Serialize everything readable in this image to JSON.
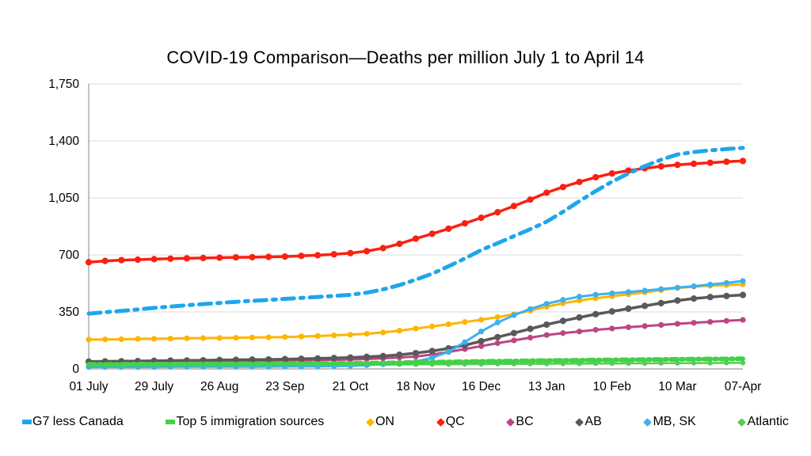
{
  "title": "COVID-19 Comparison—Deaths per million July 1 to April 14",
  "colors": {
    "background": "#ffffff",
    "gridline": "#d9d9d9",
    "axis_line": "#9a9a9a",
    "text": "#000000"
  },
  "chart_data": {
    "type": "line",
    "title": "COVID-19 Comparison—Deaths per million July 1 to April 14",
    "xlabel": "",
    "ylabel": "",
    "ylim": [
      0,
      1750
    ],
    "y_ticks": [
      0,
      350,
      700,
      1050,
      1400,
      1750
    ],
    "x_tick_labels": [
      "01 July",
      "29 July",
      "26 Aug",
      "23 Sep",
      "21 Oct",
      "18 Nov",
      "16 Dec",
      "13 Jan",
      "10 Feb",
      "10 Mar",
      "07-Apr"
    ],
    "x_unit": "weeks (41 weekly points, 01 July to 07 Apr)",
    "grid": true,
    "legend_position": "bottom",
    "series": [
      {
        "name": "G7 less Canada",
        "color": "#1ea6ec",
        "line_style": "dashed",
        "line_width": 5,
        "dash": "15 8 4 8",
        "markers": false,
        "legend_marker": "dash",
        "values": [
          340,
          348,
          356,
          365,
          375,
          383,
          391,
          398,
          405,
          412,
          418,
          424,
          430,
          436,
          442,
          448,
          455,
          468,
          488,
          515,
          548,
          585,
          630,
          678,
          730,
          772,
          815,
          858,
          904,
          965,
          1030,
          1092,
          1150,
          1200,
          1245,
          1285,
          1317,
          1332,
          1342,
          1350,
          1357
        ]
      },
      {
        "name": "Top 5 immigration sources",
        "color": "#43d147",
        "line_style": "dashed",
        "line_width": 6,
        "dash": "8 5 3 5",
        "markers": false,
        "legend_marker": "dash",
        "values": [
          28,
          28,
          28,
          29,
          29,
          29,
          30,
          30,
          30,
          31,
          31,
          31,
          32,
          32,
          33,
          33,
          34,
          35,
          36,
          38,
          40,
          41,
          43,
          44,
          46,
          47,
          48,
          50,
          51,
          52,
          53,
          54,
          55,
          56,
          57,
          58,
          59,
          60,
          61,
          61,
          62
        ]
      },
      {
        "name": "ON",
        "color": "#ffb400",
        "line_style": "solid",
        "line_width": 3,
        "dash": "",
        "markers": true,
        "legend_marker": "diamond",
        "values": [
          180,
          181,
          182,
          184,
          185,
          186,
          188,
          189,
          190,
          191,
          193,
          194,
          196,
          199,
          202,
          206,
          210,
          216,
          224,
          235,
          248,
          261,
          274,
          288,
          302,
          318,
          336,
          358,
          382,
          403,
          420,
          434,
          446,
          458,
          470,
          484,
          497,
          505,
          511,
          515,
          519
        ]
      },
      {
        "name": "QC",
        "color": "#fa2012",
        "line_style": "solid",
        "line_width": 3.5,
        "dash": "",
        "markers": true,
        "legend_marker": "diamond",
        "values": [
          655,
          663,
          668,
          671,
          674,
          677,
          679,
          681,
          683,
          685,
          686,
          688,
          690,
          694,
          698,
          704,
          711,
          723,
          742,
          768,
          800,
          830,
          861,
          894,
          928,
          962,
          1000,
          1040,
          1082,
          1117,
          1148,
          1177,
          1200,
          1218,
          1232,
          1244,
          1253,
          1260,
          1266,
          1272,
          1277
        ]
      },
      {
        "name": "BC",
        "color": "#bf4387",
        "line_style": "solid",
        "line_width": 3,
        "dash": "",
        "markers": true,
        "legend_marker": "diamond",
        "values": [
          45,
          45,
          46,
          46,
          47,
          47,
          48,
          48,
          49,
          49,
          50,
          51,
          52,
          53,
          54,
          56,
          58,
          61,
          65,
          70,
          76,
          88,
          104,
          122,
          140,
          158,
          175,
          192,
          208,
          220,
          230,
          240,
          248,
          256,
          263,
          270,
          277,
          283,
          289,
          295,
          301
        ]
      },
      {
        "name": "AB",
        "color": "#595959",
        "line_style": "solid",
        "line_width": 3.5,
        "dash": "",
        "markers": true,
        "legend_marker": "diamond",
        "values": [
          45,
          46,
          47,
          48,
          50,
          51,
          52,
          53,
          55,
          56,
          57,
          58,
          60,
          62,
          64,
          67,
          70,
          74,
          79,
          87,
          97,
          110,
          126,
          146,
          170,
          195,
          220,
          246,
          272,
          295,
          316,
          336,
          353,
          370,
          387,
          404,
          420,
          432,
          441,
          448,
          454
        ]
      },
      {
        "name": "MB, SK",
        "color": "#3cb1f1",
        "line_style": "solid",
        "line_width": 3,
        "dash": "",
        "markers": true,
        "legend_marker": "diamond",
        "values": [
          12,
          12,
          12,
          12,
          12,
          13,
          13,
          13,
          13,
          14,
          14,
          14,
          15,
          15,
          16,
          17,
          19,
          23,
          29,
          35,
          45,
          68,
          105,
          165,
          230,
          285,
          330,
          368,
          400,
          424,
          444,
          456,
          464,
          472,
          481,
          490,
          499,
          508,
          518,
          528,
          540
        ]
      },
      {
        "name": "Atlantic",
        "color": "#55cc55",
        "line_style": "solid",
        "line_width": 2.5,
        "dash": "",
        "markers": true,
        "legend_marker": "diamond",
        "values": [
          22,
          22,
          22,
          22,
          22,
          23,
          23,
          23,
          23,
          23,
          24,
          24,
          24,
          24,
          25,
          25,
          25,
          26,
          26,
          27,
          27,
          28,
          28,
          29,
          29,
          30,
          30,
          31,
          31,
          32,
          32,
          33,
          33,
          34,
          34,
          35,
          35,
          36,
          36,
          37,
          37
        ]
      }
    ],
    "draw_order": [
      "ON",
      "BC",
      "AB",
      "Atlantic",
      "MB, SK",
      "Top 5 immigration sources",
      "QC",
      "G7 less Canada"
    ]
  }
}
